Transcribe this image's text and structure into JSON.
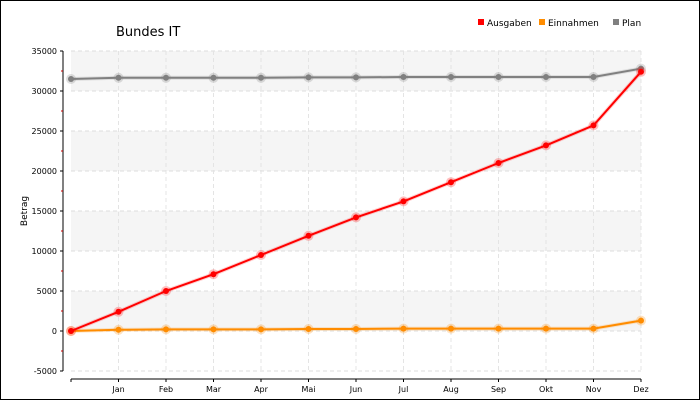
{
  "chart_data": {
    "type": "line",
    "title": "Bundes IT",
    "xlabel": "",
    "ylabel": "Betrag",
    "categories": [
      "",
      "Jan",
      "Feb",
      "Mar",
      "Apr",
      "Mai",
      "Jun",
      "Jul",
      "Aug",
      "Sep",
      "Okt",
      "Nov",
      "Dez"
    ],
    "ylim": [
      -5000,
      35000
    ],
    "yticks": [
      -5000,
      0,
      5000,
      10000,
      15000,
      20000,
      25000,
      30000,
      35000
    ],
    "grid": true,
    "legend_position": "top-right",
    "series": [
      {
        "name": "Ausgaben",
        "color": "#ff0000",
        "values": [
          0,
          2400,
          5000,
          7100,
          9500,
          11900,
          14200,
          16200,
          18600,
          21000,
          23200,
          25700,
          32400
        ]
      },
      {
        "name": "Einnahmen",
        "color": "#ff8c00",
        "values": [
          0,
          150,
          200,
          200,
          200,
          250,
          250,
          300,
          300,
          300,
          300,
          300,
          1300
        ]
      },
      {
        "name": "Plan",
        "color": "#808080",
        "values": [
          31500,
          31650,
          31650,
          31650,
          31650,
          31700,
          31700,
          31750,
          31750,
          31750,
          31750,
          31750,
          32800
        ]
      }
    ]
  }
}
